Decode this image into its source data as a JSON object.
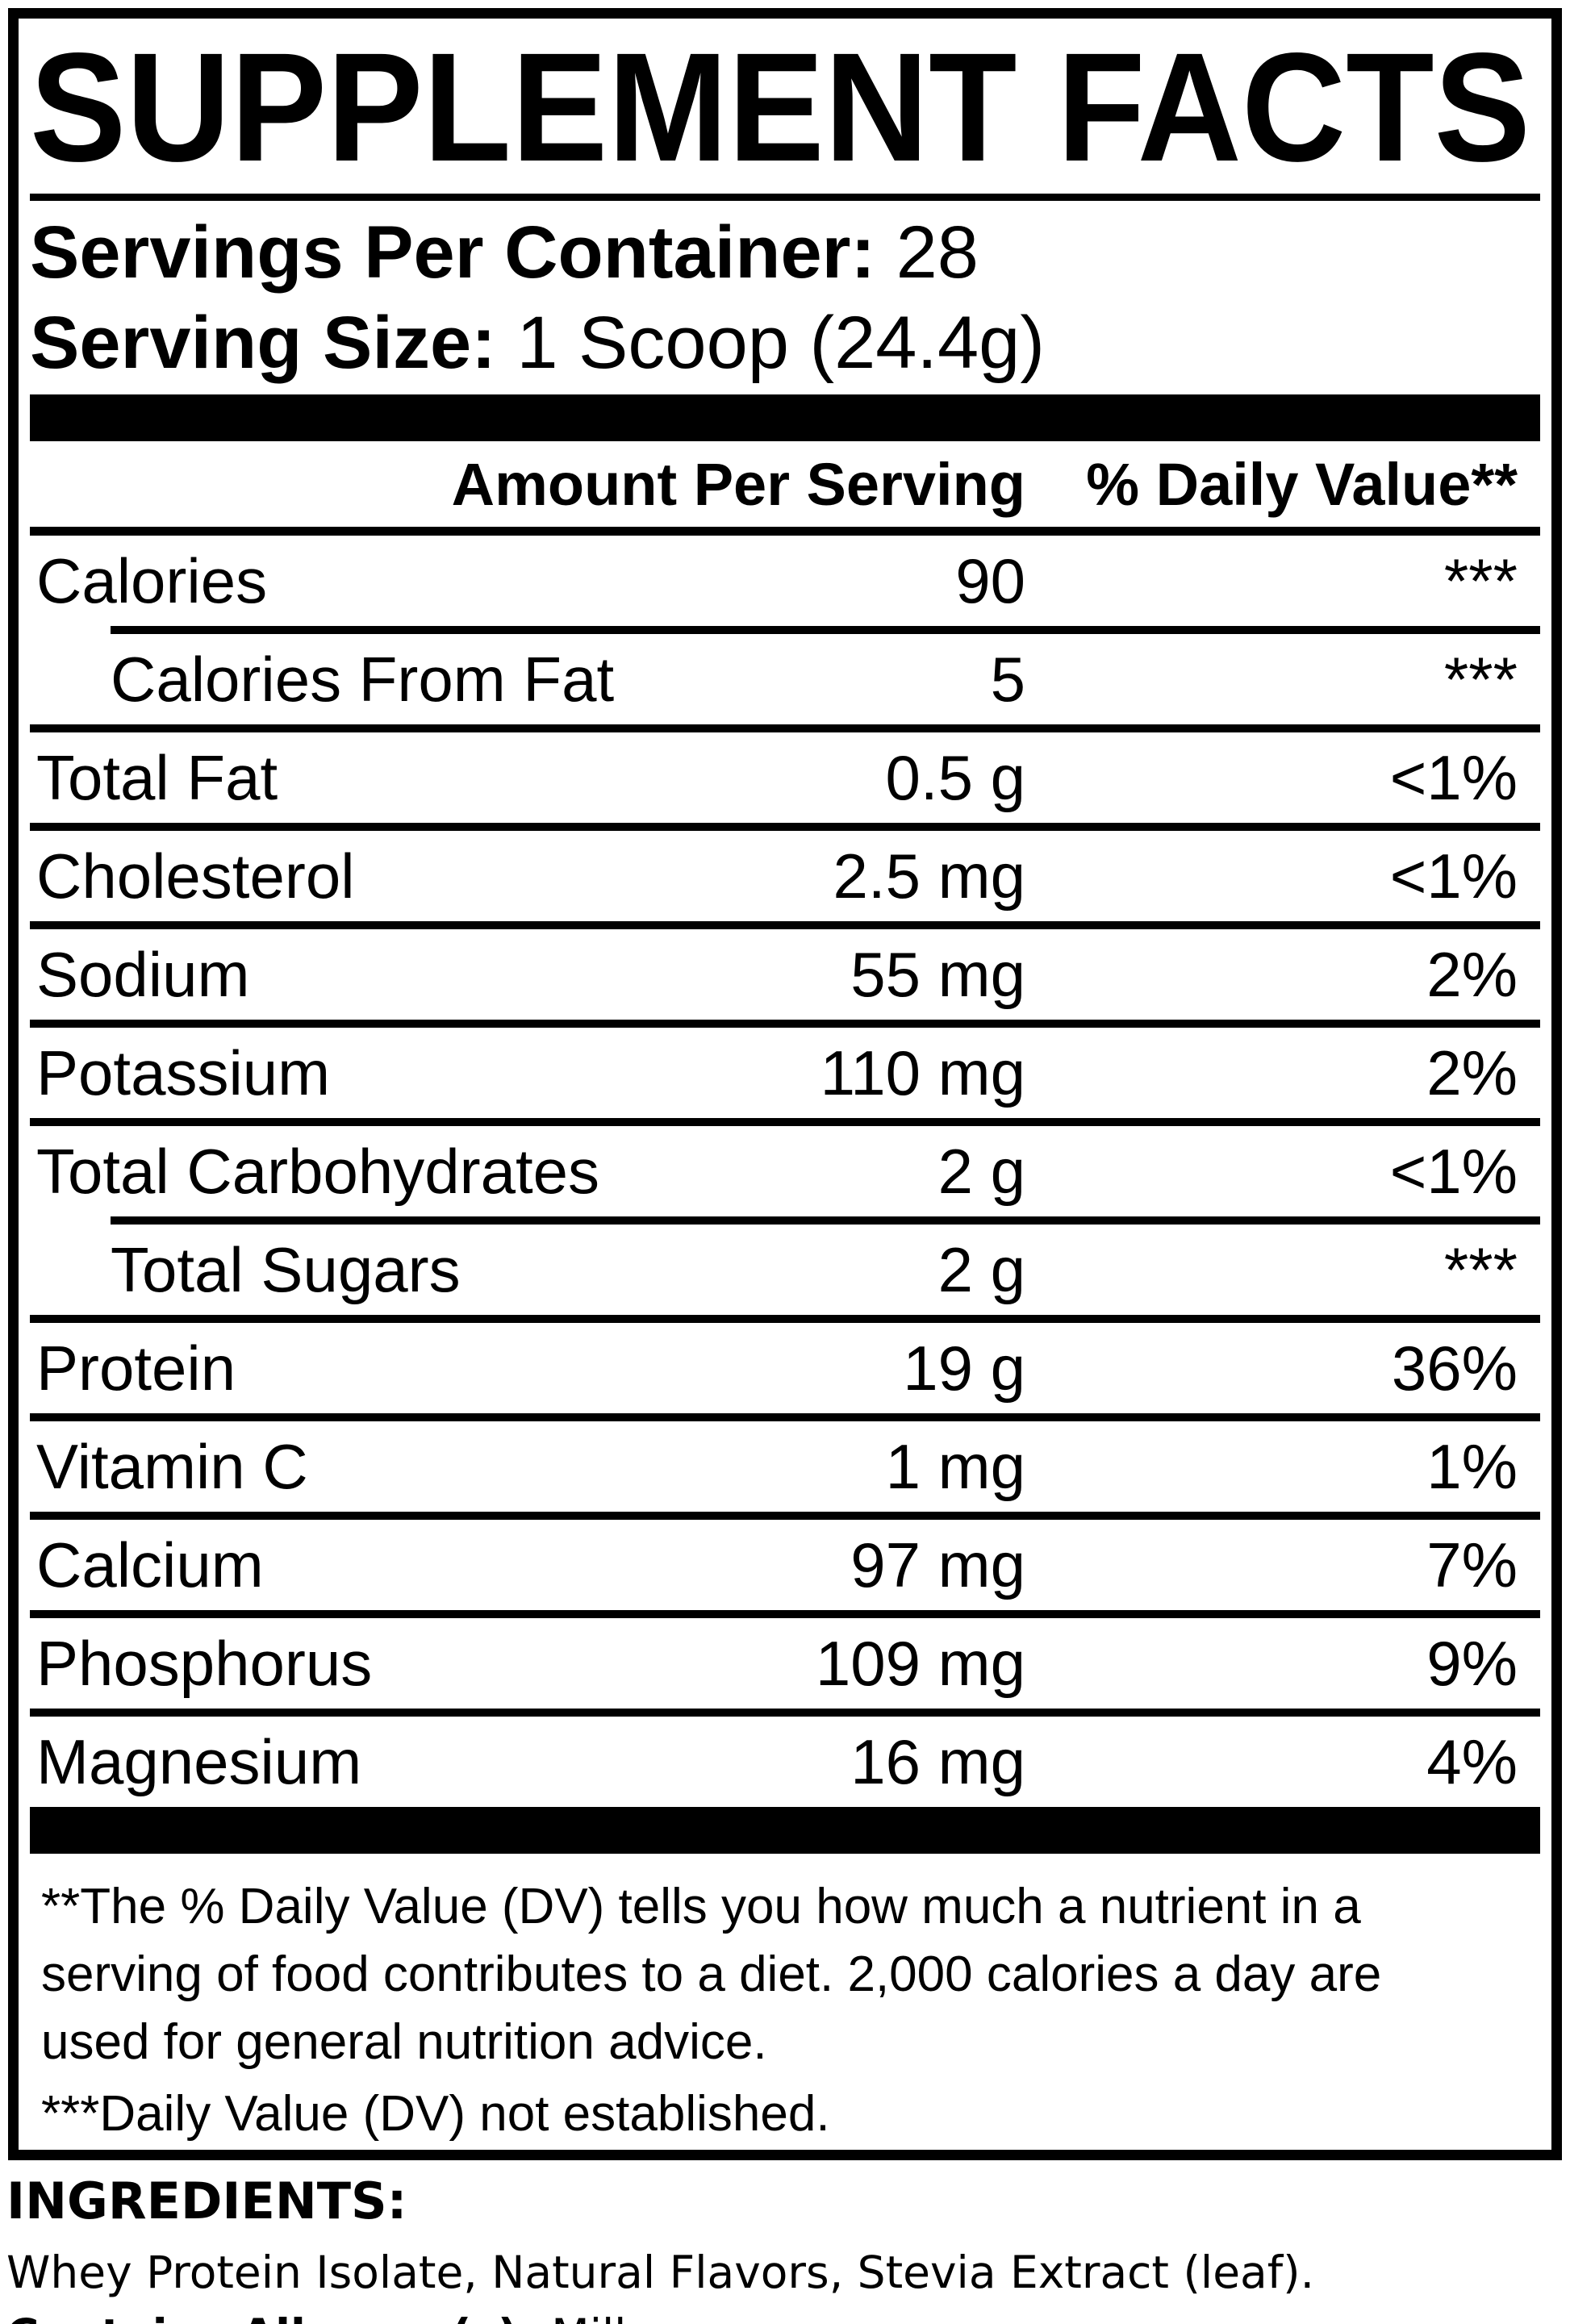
{
  "title": "SUPPLEMENT FACTS",
  "servings": {
    "label": "Servings Per Container:",
    "value": "28"
  },
  "serving_size": {
    "label": "Serving Size:",
    "value": "1 Scoop (24.4g)"
  },
  "table": {
    "amount_header": "Amount Per Serving",
    "dv_header": "% Daily Value**",
    "rows": [
      {
        "name": "Calories",
        "amount": "90",
        "dv": "***"
      },
      {
        "name": "Calories From Fat",
        "amount": "5",
        "dv": "***"
      },
      {
        "name": "Total Fat",
        "amount": "0.5 g",
        "dv": "<1%"
      },
      {
        "name": "Cholesterol",
        "amount": "2.5 mg",
        "dv": "<1%"
      },
      {
        "name": "Sodium",
        "amount": "55 mg",
        "dv": "2%"
      },
      {
        "name": "Potassium",
        "amount": "110 mg",
        "dv": "2%"
      },
      {
        "name": "Total Carbohydrates",
        "amount": "2 g",
        "dv": "<1%"
      },
      {
        "name": "Total Sugars",
        "amount": "2 g",
        "dv": "***"
      },
      {
        "name": "Protein",
        "amount": "19 g",
        "dv": "36%"
      },
      {
        "name": "Vitamin C",
        "amount": "1 mg",
        "dv": "1%"
      },
      {
        "name": "Calcium",
        "amount": "97 mg",
        "dv": "7%"
      },
      {
        "name": "Phosphorus",
        "amount": "109 mg",
        "dv": "9%"
      },
      {
        "name": "Magnesium",
        "amount": "16 mg",
        "dv": "4%"
      }
    ]
  },
  "footnotes": {
    "dv_note_lines": [
      "**The % Daily Value (DV) tells you how much a nutrient in a",
      "serving of food contributes to a diet. 2,000 calories a day are",
      "used for general nutrition advice."
    ],
    "not_established": "***Daily Value (DV) not established."
  },
  "ingredients": {
    "heading": "INGREDIENTS:",
    "list": "Whey Protein Isolate, Natural Flavors, Stevia Extract (leaf).",
    "allergen_label": "Contains Allergen(s):",
    "allergen_value": "Milk"
  },
  "colors": {
    "ink": "#000000",
    "paper": "#ffffff"
  }
}
